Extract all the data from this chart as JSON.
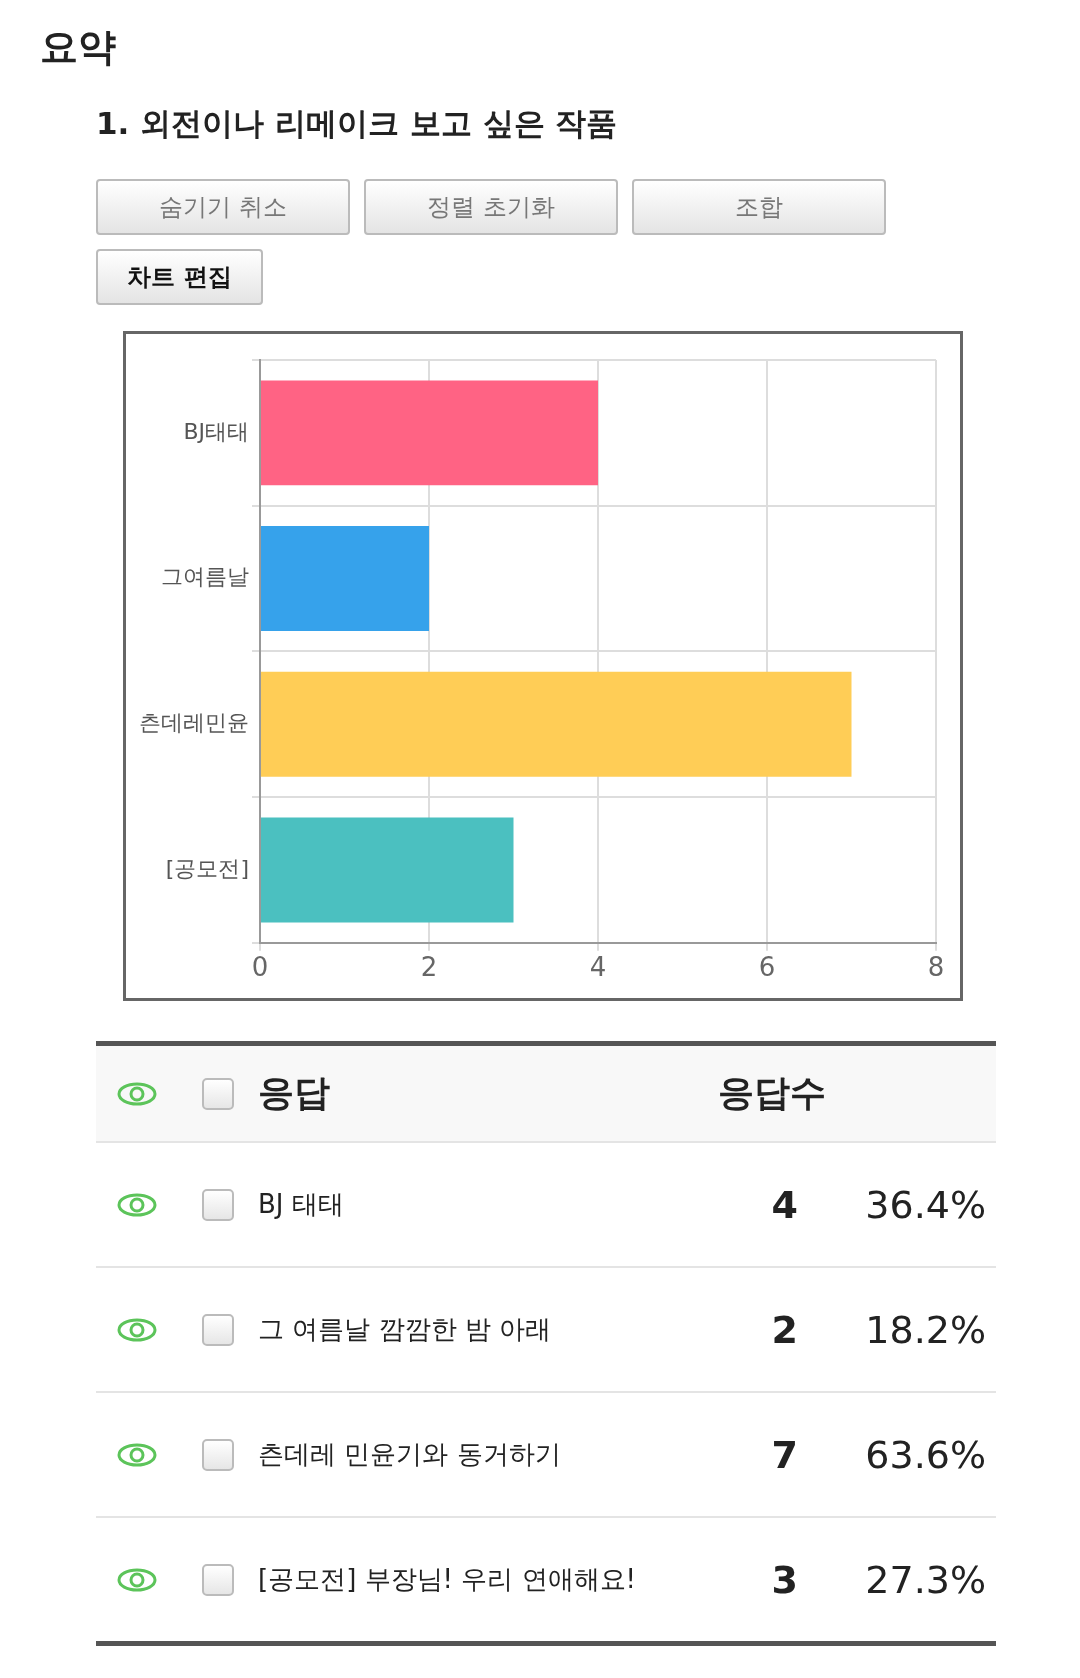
{
  "chart_data": {
    "type": "bar",
    "orientation": "horizontal",
    "title": "요약",
    "subtitle": "1. 외전이나 리메이크 보고 싶은 작품",
    "categories": [
      "BJ태태",
      "그여름날",
      "츤데레민윤",
      "[공모전]"
    ],
    "values": [
      4,
      2,
      7,
      3
    ],
    "colors": [
      "#ff6384",
      "#36a2eb",
      "#ffcd56",
      "#4bc0c0"
    ],
    "xlim": [
      0,
      8
    ],
    "xticks": [
      0,
      2,
      4,
      6,
      8
    ],
    "grid": true,
    "legend": false,
    "annotations": [
      "숨기기 취소",
      "정렬 초기화",
      "조합",
      "차트 편집",
      "응답",
      "응답수",
      "BJ 태태",
      "그 여름날 깜깜한 밤 아래",
      "츤데레 민윤기와 동거하기",
      "[공모전] 부장님! 우리 연애해요!",
      "4",
      "2",
      "7",
      "3",
      "36.4%",
      "18.2%",
      "63.6%",
      "27.3%"
    ]
  }
}
